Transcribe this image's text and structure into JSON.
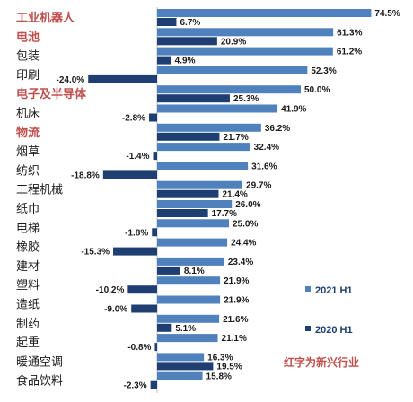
{
  "chart_data": {
    "type": "bar",
    "orientation": "horizontal",
    "categories": [
      "工业机器人",
      "电池",
      "包装",
      "印刷",
      "电子及半导体",
      "机床",
      "物流",
      "烟草",
      "纺织",
      "工程机械",
      "纸巾",
      "电梯",
      "橡胶",
      "建材",
      "塑料",
      "造纸",
      "制药",
      "起重",
      "暖通空调",
      "食品饮料"
    ],
    "highlighted_categories": [
      "工业机器人",
      "电池",
      "电子及半导体",
      "物流"
    ],
    "series": [
      {
        "name": "2021 H1",
        "color": "#4f81bd",
        "values": [
          74.5,
          61.3,
          61.2,
          52.3,
          50.0,
          41.9,
          36.2,
          32.4,
          31.6,
          29.7,
          26.0,
          25.0,
          24.4,
          23.4,
          21.9,
          21.9,
          21.6,
          21.1,
          16.3,
          15.8
        ],
        "labels": [
          "74.5%",
          "61.3%",
          "61.2%",
          "52.3%",
          "50.0%",
          "41.9%",
          "36.2%",
          "32.4%",
          "31.6%",
          "29.7%",
          "26.0%",
          "25.0%",
          "24.4%",
          "23.4%",
          "21.9%",
          "21.9%",
          "21.6%",
          "21.1%",
          "16.3%",
          "15.8%"
        ]
      },
      {
        "name": "2020 H1",
        "color": "#1f3f73",
        "values": [
          6.7,
          20.9,
          4.9,
          -24.0,
          25.3,
          -2.8,
          21.7,
          -1.4,
          -18.8,
          21.4,
          17.7,
          -1.8,
          -15.3,
          8.1,
          -10.2,
          -9.0,
          5.1,
          -0.8,
          19.5,
          -2.3
        ],
        "labels": [
          "6.7%",
          "20.9%",
          "4.9%",
          "-24.0%",
          "25.3%",
          "-2.8%",
          "21.7%",
          "-1.4%",
          "-18.8%",
          "21.4%",
          "17.7%",
          "-1.8%",
          "-15.3%",
          "8.1%",
          "-10.2%",
          "-9.0%",
          "5.1%",
          "-0.8%",
          "19.5%",
          "-2.3%"
        ]
      }
    ],
    "legend": [
      "2021 H1",
      "2020 H1"
    ],
    "annotation": "红字为新兴行业",
    "highlight_color": "#c0504d",
    "xlim": [
      -30,
      80
    ]
  }
}
